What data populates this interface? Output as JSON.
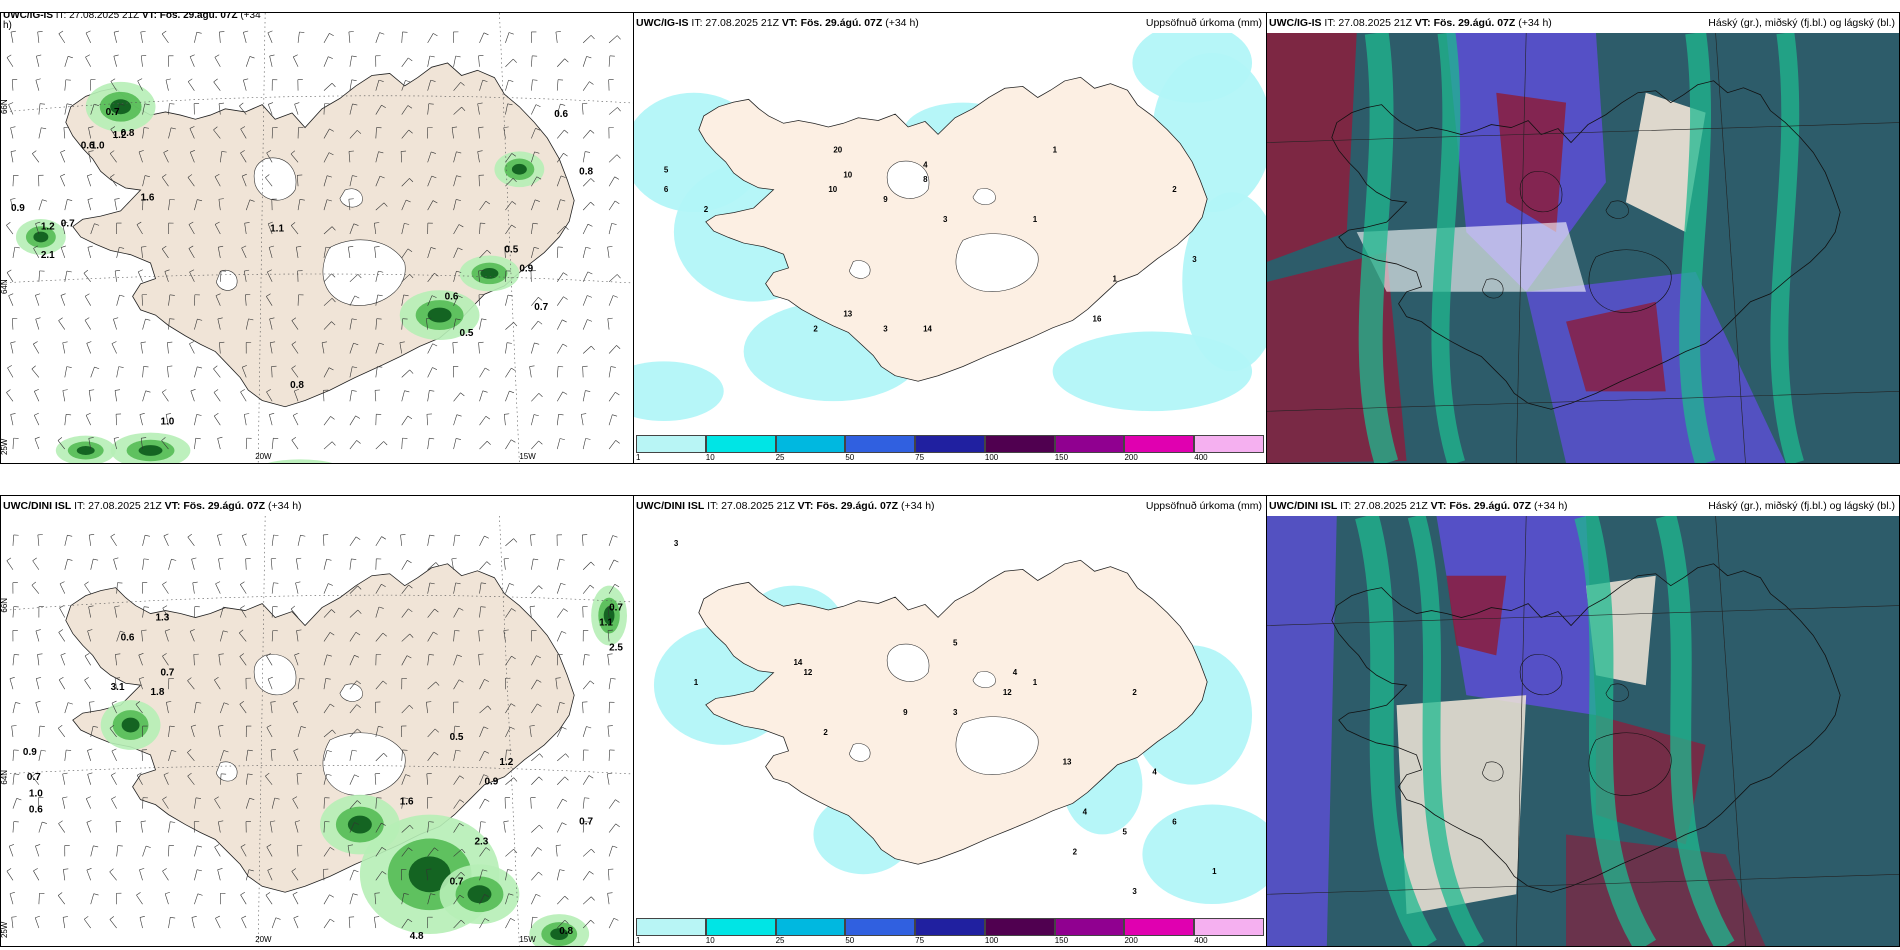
{
  "rows": [
    {
      "panels": [
        {
          "model": "UWC/IG-IS",
          "it": "IT: 27.08.2025 21Z",
          "vt_label": "VT:",
          "vt": "Fös. 29.ágú. 07Z",
          "lead": "(+34",
          "lead2": "h)",
          "right": "",
          "type": "wind"
        },
        {
          "model": "UWC/IG-IS",
          "it": "IT: 27.08.2025 21Z",
          "vt_label": "VT:",
          "vt": "Fös. 29.ágú. 07Z",
          "lead": "(+34 h)",
          "lead2": "",
          "right": "Uppsöfnuð úrkoma (mm)",
          "type": "precip"
        },
        {
          "model": "UWC/IG-IS",
          "it": "IT: 27.08.2025 21Z",
          "vt_label": "VT:",
          "vt": "Fös. 29.ágú. 07Z",
          "lead": "(+34 h)",
          "lead2": "",
          "right": "Háský (gr.), miðský (fj.bl.) og lágský (bl.)",
          "type": "cloud"
        }
      ]
    },
    {
      "panels": [
        {
          "model": "UWC/DINI ISL",
          "it": "IT: 27.08.2025 21Z",
          "vt_label": "VT:",
          "vt": "Fös. 29.ágú. 07Z",
          "lead": "(+34 h)",
          "lead2": "",
          "right": "",
          "type": "wind"
        },
        {
          "model": "UWC/DINI ISL",
          "it": "IT: 27.08.2025 21Z",
          "vt_label": "VT:",
          "vt": "Fös. 29.ágú. 07Z",
          "lead": "(+34 h)",
          "lead2": "",
          "right": "Uppsöfnuð úrkoma (mm)",
          "type": "precip"
        },
        {
          "model": "UWC/DINI ISL",
          "it": "IT: 27.08.2025 21Z",
          "vt_label": "VT:",
          "vt": "Fös. 29.ágú. 07Z",
          "lead": "(+34 h)",
          "lead2": "",
          "right": "Háský (gr.), miðský (fj.bl.) og lágský (bl.)",
          "type": "cloud"
        }
      ]
    }
  ],
  "colorbar": {
    "ticks": [
      "1",
      "10",
      "25",
      "50",
      "75",
      "100",
      "150",
      "200",
      "400"
    ],
    "colors": [
      "#b8f5f5",
      "#00e5e5",
      "#00b8e0",
      "#3060e0",
      "#2020a0",
      "#500050",
      "#900090",
      "#e000b0",
      "#f5b0f0"
    ]
  },
  "axis_labels": {
    "lon_20": "20W",
    "lon_15": "15W",
    "lat_66": "66N",
    "lat_64": "64N",
    "lon_25": "25W"
  },
  "map_labels": {
    "wind_top": [
      "0.6",
      "0.8",
      "0.9",
      "1.2",
      "0.5",
      "0.9",
      "0.7",
      "0.6",
      "0.5",
      "1.0",
      "0.8",
      "1.0",
      "0.7",
      "0.6",
      "0.8",
      "1.2",
      "2.1",
      "1.1",
      "1.6",
      "0.7",
      "0.8"
    ],
    "wind_bottom": [
      "0.7",
      "1.1",
      "2.5",
      "0.9",
      "0.7",
      "1.0",
      "0.6",
      "0.6",
      "0.5",
      "1.2",
      "0.7",
      "0.9",
      "1.6",
      "2.3",
      "4.8",
      "0.7",
      "0.8",
      "0.7",
      "3.1",
      "1.8",
      "1.3"
    ],
    "precip_top": [
      "2",
      "5",
      "6",
      "13",
      "20",
      "10",
      "9",
      "3",
      "1",
      "4",
      "8",
      "10",
      "2",
      "1",
      "3",
      "14",
      "16",
      "1",
      "3",
      "2"
    ],
    "precip_bottom": [
      "3",
      "1",
      "2",
      "14",
      "12",
      "9",
      "5",
      "4",
      "3",
      "1",
      "12",
      "2",
      "13",
      "4",
      "5",
      "6",
      "2",
      "3",
      "1",
      "4"
    ]
  },
  "colors": {
    "land": "#f0e4d7",
    "land_light": "#fcefe3",
    "sea": "#ffffff",
    "green_light": "#b6eeb6",
    "green_mid": "#4fb84f",
    "green_dark": "#0c5a1c",
    "cyan": "#b2f5f8",
    "cloud_dark": "#2d5c6a",
    "cloud_teal": "#1fb88f",
    "cloud_blue": "#5a4fd0",
    "cloud_red": "#8c1d3c"
  }
}
